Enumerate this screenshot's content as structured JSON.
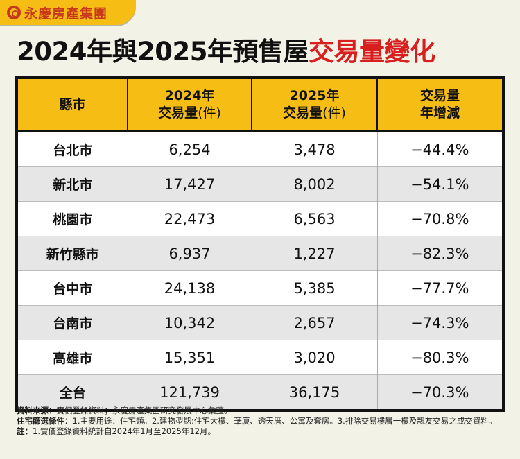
{
  "logo": {
    "text": "永慶房產集團",
    "color": "#c8381c"
  },
  "title": {
    "main": "2024年與2025年預售屋",
    "highlight": "交易量變化",
    "highlight_color": "#d81e1e"
  },
  "table": {
    "headers": [
      {
        "line1": "縣市",
        "line2": "",
        "unit": ""
      },
      {
        "line1": "2024年",
        "line2": "交易量",
        "unit": "(件)"
      },
      {
        "line1": "2025年",
        "line2": "交易量",
        "unit": "(件)"
      },
      {
        "line1": "交易量",
        "line2": "年增減",
        "unit": ""
      }
    ],
    "rows": [
      [
        "台北市",
        "6,254",
        "3,478",
        "−44.4%"
      ],
      [
        "新北市",
        "17,427",
        "8,002",
        "−54.1%"
      ],
      [
        "桃園市",
        "22,473",
        "6,563",
        "−70.8%"
      ],
      [
        "新竹縣市",
        "6,937",
        "1,227",
        "−82.3%"
      ],
      [
        "台中市",
        "24,138",
        "5,385",
        "−77.7%"
      ],
      [
        "台南市",
        "10,342",
        "2,657",
        "−74.3%"
      ],
      [
        "高雄市",
        "15,351",
        "3,020",
        "−80.3%"
      ],
      [
        "全台",
        "121,739",
        "36,175",
        "−70.3%"
      ]
    ],
    "header_color": "#f6be15"
  },
  "notes": [
    {
      "label": "資料來源：",
      "text": "實價登錄資料；永慶房產集團研究發展中心彙整。"
    },
    {
      "label": "住宅篩選條件：",
      "text": "1.主要用途：住宅類。2.建物型態:住宅大樓、華廈、透天厝、公寓及套房。3.排除交易樓層一樓及親友交易之成交資料。"
    },
    {
      "label": "註：",
      "text": "1.實價登錄資料統計自2024年1月至2025年12月。"
    }
  ]
}
